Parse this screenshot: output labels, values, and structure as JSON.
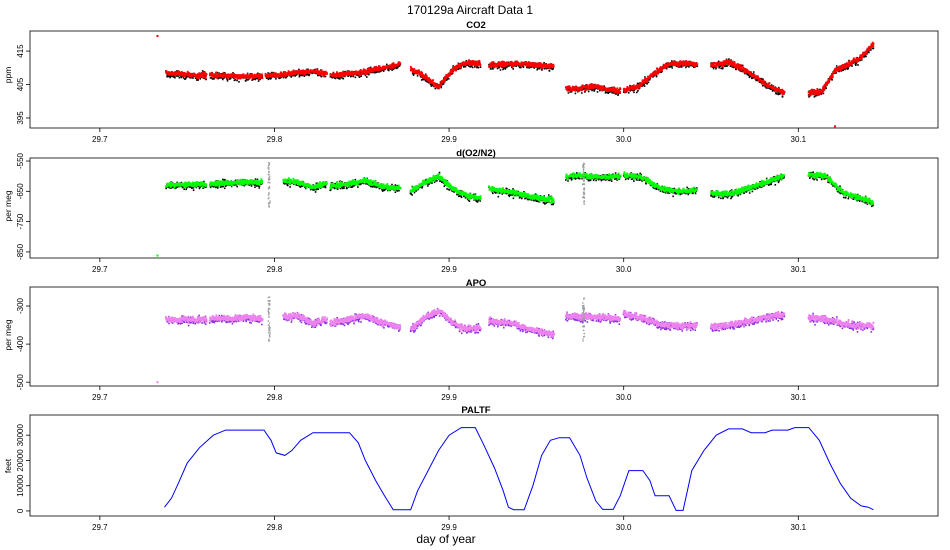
{
  "figure": {
    "title": "170129a   Aircraft Data 1",
    "xlabel": "day of year",
    "xlim": [
      29.66,
      30.18
    ],
    "xticks": [
      "29.7",
      "29.8",
      "29.9",
      "30.0",
      "30.1"
    ]
  },
  "chart_data": [
    {
      "type": "scatter",
      "title": "CO2",
      "ylabel": "ppm",
      "ylim": [
        392,
        421
      ],
      "yticks": [
        395,
        405,
        415
      ],
      "color": "#ff0000",
      "edge_color": "#000000",
      "segments": [
        {
          "x0": 29.738,
          "x1": 29.761,
          "y": [
            408.5,
            408.3,
            408.0,
            407.6,
            407.8
          ]
        },
        {
          "x0": 29.763,
          "x1": 29.793,
          "y": [
            407.9,
            407.7,
            407.6,
            407.5,
            407.6
          ]
        },
        {
          "x0": 29.795,
          "x1": 29.83,
          "y": [
            407.6,
            407.9,
            408.5,
            409.0,
            408.2
          ]
        },
        {
          "x0": 29.832,
          "x1": 29.872,
          "y": [
            407.8,
            408.2,
            408.8,
            410.0,
            411.2
          ]
        },
        {
          "x0": 29.878,
          "x1": 29.918,
          "y": [
            409.8,
            407.5,
            404.3,
            409.5,
            411.5,
            411.3
          ]
        },
        {
          "x0": 29.923,
          "x1": 29.96,
          "y": [
            410.8,
            411.3,
            411.0,
            410.5
          ]
        },
        {
          "x0": 29.967,
          "x1": 29.998,
          "y": [
            404.0,
            403.8,
            404.6,
            403.7,
            403.0
          ]
        },
        {
          "x0": 30.0,
          "x1": 30.042,
          "y": [
            403.2,
            404.5,
            408.0,
            411.0,
            411.5,
            411.0
          ]
        },
        {
          "x0": 30.05,
          "x1": 30.092,
          "y": [
            410.8,
            411.6,
            409.0,
            405.0,
            402.5
          ]
        },
        {
          "x0": 30.106,
          "x1": 30.143,
          "y": [
            402.5,
            403.0,
            409.0,
            411.0,
            413.0,
            417.0
          ]
        }
      ],
      "outliers": [
        [
          29.733,
          419.5
        ],
        [
          30.121,
          392.5
        ]
      ]
    },
    {
      "type": "scatter",
      "title": "d(O2/N2)",
      "ylabel": "per meg",
      "ylim": [
        -870,
        -540
      ],
      "yticks": [
        -850,
        -750,
        -650,
        -550
      ],
      "color": "#00ff00",
      "edge_color": "#000000",
      "segments": [
        {
          "x0": 29.738,
          "x1": 29.761,
          "y": [
            -630,
            -628,
            -626,
            -627
          ]
        },
        {
          "x0": 29.763,
          "x1": 29.793,
          "y": [
            -625,
            -622,
            -620,
            -620
          ]
        },
        {
          "x0": 29.805,
          "x1": 29.83,
          "y": [
            -615,
            -620,
            -635,
            -625
          ]
        },
        {
          "x0": 29.832,
          "x1": 29.872,
          "y": [
            -632,
            -625,
            -615,
            -635,
            -640
          ]
        },
        {
          "x0": 29.878,
          "x1": 29.918,
          "y": [
            -650,
            -620,
            -600,
            -640,
            -665,
            -672
          ]
        },
        {
          "x0": 29.923,
          "x1": 29.96,
          "y": [
            -640,
            -652,
            -668,
            -680
          ]
        },
        {
          "x0": 29.967,
          "x1": 29.998,
          "y": [
            -600,
            -597,
            -602,
            -600
          ]
        },
        {
          "x0": 30.0,
          "x1": 30.042,
          "y": [
            -595,
            -603,
            -640,
            -650,
            -645
          ]
        },
        {
          "x0": 30.05,
          "x1": 30.092,
          "y": [
            -655,
            -660,
            -640,
            -620,
            -597
          ]
        },
        {
          "x0": 30.106,
          "x1": 30.143,
          "y": [
            -595,
            -597,
            -650,
            -670,
            -685
          ]
        }
      ],
      "grey_markers": [
        29.797,
        29.977
      ],
      "outliers": [
        [
          29.733,
          -862
        ]
      ]
    },
    {
      "type": "scatter",
      "title": "APO",
      "ylabel": "per meg",
      "ylim": [
        -510,
        -250
      ],
      "yticks": [
        -500,
        -400,
        -300
      ],
      "color": "#ee82ee",
      "edge_color": "#8a2be2",
      "segments": [
        {
          "x0": 29.738,
          "x1": 29.761,
          "y": [
            -335,
            -338,
            -336,
            -336
          ]
        },
        {
          "x0": 29.763,
          "x1": 29.793,
          "y": [
            -332,
            -333,
            -330,
            -332
          ]
        },
        {
          "x0": 29.805,
          "x1": 29.83,
          "y": [
            -330,
            -325,
            -345,
            -335
          ]
        },
        {
          "x0": 29.832,
          "x1": 29.872,
          "y": [
            -345,
            -335,
            -325,
            -345,
            -355
          ]
        },
        {
          "x0": 29.878,
          "x1": 29.918,
          "y": [
            -362,
            -330,
            -312,
            -345,
            -360,
            -355
          ]
        },
        {
          "x0": 29.923,
          "x1": 29.96,
          "y": [
            -338,
            -345,
            -362,
            -375
          ]
        },
        {
          "x0": 29.967,
          "x1": 29.998,
          "y": [
            -325,
            -328,
            -330,
            -333
          ]
        },
        {
          "x0": 30.0,
          "x1": 30.042,
          "y": [
            -320,
            -330,
            -348,
            -352,
            -350
          ]
        },
        {
          "x0": 30.05,
          "x1": 30.092,
          "y": [
            -355,
            -350,
            -340,
            -330,
            -322
          ]
        },
        {
          "x0": 30.106,
          "x1": 30.143,
          "y": [
            -330,
            -333,
            -345,
            -352,
            -352
          ]
        }
      ],
      "grey_markers": [
        29.797,
        29.977
      ],
      "outliers": [
        [
          29.733,
          -500
        ]
      ]
    },
    {
      "type": "line",
      "title": "PALTF",
      "ylabel": "feet",
      "ylim": [
        -2000,
        38000
      ],
      "yticks": [
        0,
        10000,
        20000,
        30000
      ],
      "color": "#0000ff",
      "points": [
        [
          29.737,
          1500
        ],
        [
          29.741,
          5000
        ],
        [
          29.745,
          11000
        ],
        [
          29.75,
          19000
        ],
        [
          29.757,
          25000
        ],
        [
          29.765,
          30000
        ],
        [
          29.772,
          32000
        ],
        [
          29.794,
          32000
        ],
        [
          29.798,
          28000
        ],
        [
          29.801,
          23000
        ],
        [
          29.806,
          22000
        ],
        [
          29.81,
          24000
        ],
        [
          29.815,
          28000
        ],
        [
          29.822,
          31000
        ],
        [
          29.83,
          31000
        ],
        [
          29.843,
          31000
        ],
        [
          29.848,
          27000
        ],
        [
          29.852,
          20000
        ],
        [
          29.858,
          12000
        ],
        [
          29.863,
          6000
        ],
        [
          29.868,
          500
        ],
        [
          29.878,
          500
        ],
        [
          29.882,
          8000
        ],
        [
          29.888,
          16000
        ],
        [
          29.894,
          24000
        ],
        [
          29.9,
          30000
        ],
        [
          29.907,
          33000
        ],
        [
          29.915,
          33000
        ],
        [
          29.92,
          26000
        ],
        [
          29.926,
          17000
        ],
        [
          29.931,
          8000
        ],
        [
          29.934,
          1500
        ],
        [
          29.937,
          500
        ],
        [
          29.943,
          500
        ],
        [
          29.948,
          10000
        ],
        [
          29.953,
          22000
        ],
        [
          29.958,
          28000
        ],
        [
          29.963,
          29000
        ],
        [
          29.969,
          29000
        ],
        [
          29.975,
          22000
        ],
        [
          29.979,
          13000
        ],
        [
          29.984,
          4000
        ],
        [
          29.988,
          600
        ],
        [
          29.994,
          600
        ],
        [
          29.998,
          6000
        ],
        [
          30.003,
          16000
        ],
        [
          30.006,
          16000
        ],
        [
          30.011,
          16000
        ],
        [
          30.015,
          12000
        ],
        [
          30.018,
          6000
        ],
        [
          30.022,
          6000
        ],
        [
          30.026,
          6000
        ],
        [
          30.03,
          200
        ],
        [
          30.034,
          200
        ],
        [
          30.039,
          16000
        ],
        [
          30.046,
          24000
        ],
        [
          30.053,
          30000
        ],
        [
          30.06,
          32500
        ],
        [
          30.068,
          32500
        ],
        [
          30.073,
          31000
        ],
        [
          30.081,
          31000
        ],
        [
          30.085,
          32000
        ],
        [
          30.094,
          32000
        ],
        [
          30.098,
          33000
        ],
        [
          30.106,
          33000
        ],
        [
          30.112,
          28000
        ],
        [
          30.118,
          19000
        ],
        [
          30.124,
          11000
        ],
        [
          30.13,
          5000
        ],
        [
          30.136,
          2000
        ],
        [
          30.14,
          1500
        ],
        [
          30.143,
          500
        ]
      ]
    }
  ]
}
